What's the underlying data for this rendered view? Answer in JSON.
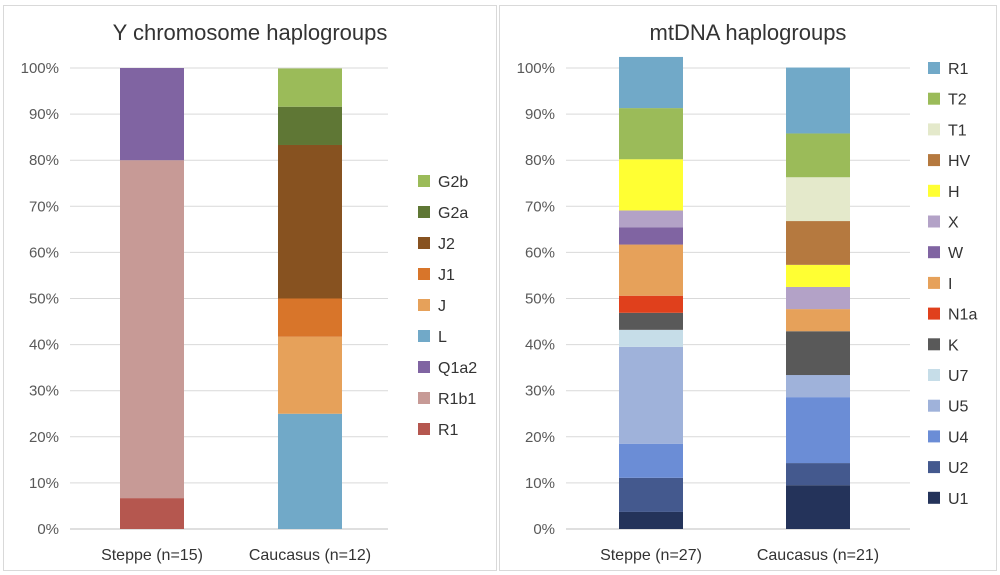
{
  "chart_data": [
    {
      "type": "bar",
      "stacked": true,
      "title": "Y chromosome haplogroups",
      "categories": [
        "Steppe (n=15)",
        "Caucasus (n=12)"
      ],
      "y_ticks": [
        "0%",
        "10%",
        "20%",
        "30%",
        "40%",
        "50%",
        "60%",
        "70%",
        "80%",
        "90%",
        "100%"
      ],
      "ylim": [
        0,
        100
      ],
      "grid": true,
      "legend_position": "right",
      "series": [
        {
          "name": "R1",
          "color": "#b5574f",
          "values": [
            6.7,
            0
          ]
        },
        {
          "name": "R1b1",
          "color": "#c79a96",
          "values": [
            73.3,
            0
          ]
        },
        {
          "name": "Q1a2",
          "color": "#8064a2",
          "values": [
            20.0,
            0
          ]
        },
        {
          "name": "L",
          "color": "#71a9c8",
          "values": [
            0,
            25.0
          ]
        },
        {
          "name": "J",
          "color": "#e6a15a",
          "values": [
            0,
            16.7
          ]
        },
        {
          "name": "J1",
          "color": "#d8752a",
          "values": [
            0,
            8.3
          ]
        },
        {
          "name": "J2",
          "color": "#875220",
          "values": [
            0,
            33.3
          ]
        },
        {
          "name": "G2a",
          "color": "#5f7735",
          "values": [
            0,
            8.3
          ]
        },
        {
          "name": "G2b",
          "color": "#9bbb59",
          "values": [
            0,
            8.3
          ]
        }
      ]
    },
    {
      "type": "bar",
      "stacked": true,
      "title": "mtDNA haplogroups",
      "categories": [
        "Steppe (n=27)",
        "Caucasus (n=21)"
      ],
      "y_ticks": [
        "0%",
        "10%",
        "20%",
        "30%",
        "40%",
        "50%",
        "60%",
        "70%",
        "80%",
        "90%",
        "100%"
      ],
      "ylim": [
        0,
        100
      ],
      "grid": true,
      "legend_position": "right",
      "series": [
        {
          "name": "U1",
          "color": "#24335a",
          "values": [
            3.7,
            9.5
          ]
        },
        {
          "name": "U2",
          "color": "#44598e",
          "values": [
            7.4,
            4.8
          ]
        },
        {
          "name": "U4",
          "color": "#6b8dd6",
          "values": [
            7.4,
            14.3
          ]
        },
        {
          "name": "U5",
          "color": "#9fb2da",
          "values": [
            21.0,
            4.8
          ]
        },
        {
          "name": "U7",
          "color": "#c6dde8",
          "values": [
            3.7,
            0
          ]
        },
        {
          "name": "K",
          "color": "#595959",
          "values": [
            3.7,
            9.5
          ]
        },
        {
          "name": "N1a",
          "color": "#e0401c",
          "values": [
            3.7,
            0
          ]
        },
        {
          "name": "I",
          "color": "#e6a15a",
          "values": [
            11.1,
            4.8
          ]
        },
        {
          "name": "W",
          "color": "#8064a2",
          "values": [
            3.7,
            0
          ]
        },
        {
          "name": "X",
          "color": "#b3a2c7",
          "values": [
            3.7,
            4.8
          ]
        },
        {
          "name": "H",
          "color": "#ffff33",
          "values": [
            11.1,
            4.8
          ]
        },
        {
          "name": "HV",
          "color": "#b5793f",
          "values": [
            0,
            9.5
          ]
        },
        {
          "name": "T1",
          "color": "#e4e9cb",
          "values": [
            0,
            9.5
          ]
        },
        {
          "name": "T2",
          "color": "#9bbb59",
          "values": [
            11.1,
            9.5
          ]
        },
        {
          "name": "R1",
          "color": "#71a9c8",
          "values": [
            11.1,
            14.3
          ]
        }
      ]
    }
  ]
}
